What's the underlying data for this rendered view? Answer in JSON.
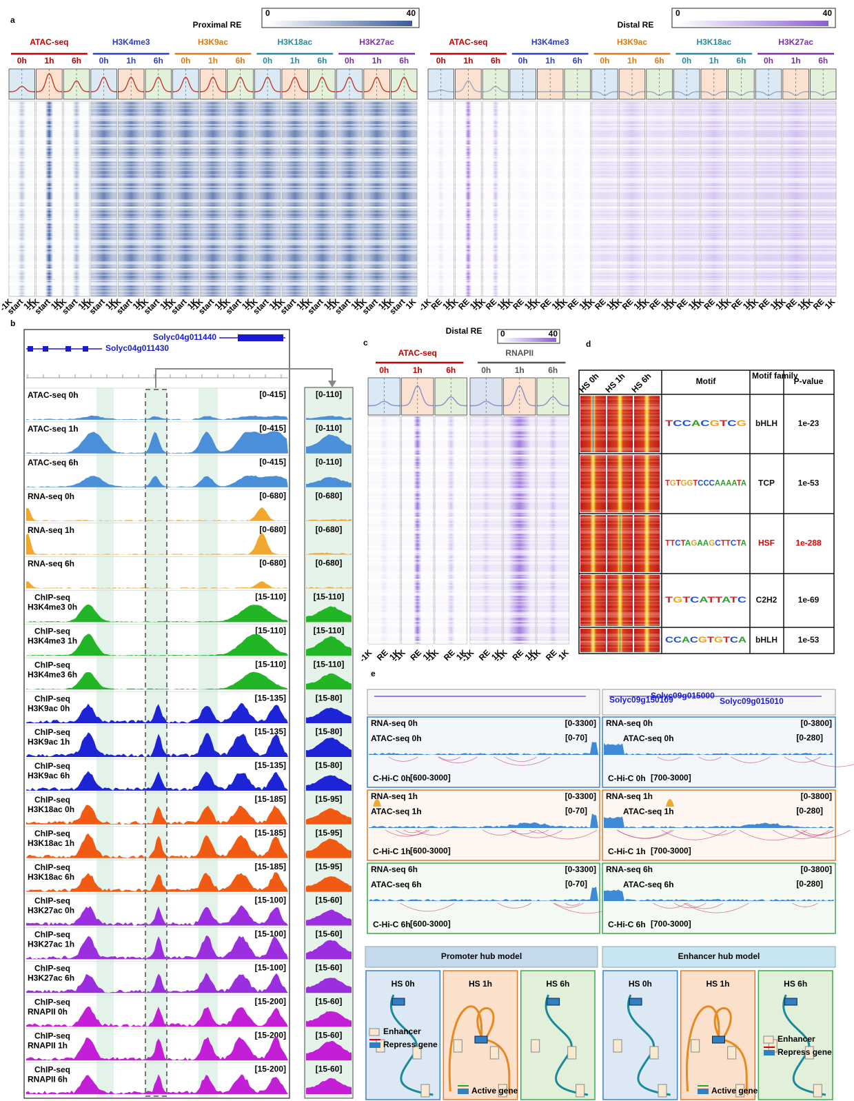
{
  "panel_a": {
    "label": "a",
    "proximal": {
      "title": "Proximal RE",
      "scale": [
        0,
        40
      ]
    },
    "distal": {
      "title": "Distal RE",
      "scale": [
        0,
        40
      ]
    },
    "marks": [
      {
        "name": "ATAC-seq",
        "color": "#c00000"
      },
      {
        "name": "H3K4me3",
        "color": "#2e3bd0"
      },
      {
        "name": "H3K9ac",
        "color": "#e07a10"
      },
      {
        "name": "H3K18ac",
        "color": "#2a8a9a"
      },
      {
        "name": "H3K27ac",
        "color": "#7b2fa8"
      }
    ],
    "times": [
      "0h",
      "1h",
      "6h"
    ],
    "proximal_axis": [
      "-1K",
      "start",
      "1K"
    ],
    "distal_axis": [
      "-1K",
      "RE",
      "1K"
    ]
  },
  "panel_b": {
    "label": "b",
    "genes": [
      "Solyc04g011440",
      "Solyc04g011430"
    ],
    "tracks": [
      {
        "name": [
          "ATAC-seq 0h"
        ],
        "range": "[0-415]",
        "zoom_range": "[0-110]",
        "color": "#4a8fd8"
      },
      {
        "name": [
          "ATAC-seq 1h"
        ],
        "range": "[0-415]",
        "zoom_range": "[0-110]",
        "color": "#4a8fd8"
      },
      {
        "name": [
          "ATAC-seq 6h"
        ],
        "range": "[0-415]",
        "zoom_range": "[0-110]",
        "color": "#4a8fd8"
      },
      {
        "name": [
          "RNA-seq 0h"
        ],
        "range": "[0-680]",
        "zoom_range": "[0-680]",
        "color": "#f0a830"
      },
      {
        "name": [
          "RNA-seq 1h"
        ],
        "range": "[0-680]",
        "zoom_range": "[0-680]",
        "color": "#f0a830"
      },
      {
        "name": [
          "RNA-seq 6h"
        ],
        "range": "[0-680]",
        "zoom_range": "[0-680]",
        "color": "#f0a830"
      },
      {
        "name": [
          "ChIP-seq",
          "H3K4me3 0h"
        ],
        "range": "[15-110]",
        "zoom_range": "[15-110]",
        "color": "#22b526"
      },
      {
        "name": [
          "ChIP-seq",
          "H3K4me3 1h"
        ],
        "range": "[15-110]",
        "zoom_range": "[15-110]",
        "color": "#22b526"
      },
      {
        "name": [
          "ChIP-seq",
          "H3K4me3 6h"
        ],
        "range": "[15-110]",
        "zoom_range": "[15-110]",
        "color": "#22b526"
      },
      {
        "name": [
          "ChIP-seq",
          "H3K9ac 0h"
        ],
        "range": "[15-135]",
        "zoom_range": "[15-80]",
        "color": "#1d24d6"
      },
      {
        "name": [
          "ChIP-seq",
          "H3K9ac 1h"
        ],
        "range": "[15-135]",
        "zoom_range": "[15-80]",
        "color": "#1d24d6"
      },
      {
        "name": [
          "ChIP-seq",
          "H3K9ac 6h"
        ],
        "range": "[15-135]",
        "zoom_range": "[15-80]",
        "color": "#1d24d6"
      },
      {
        "name": [
          "ChIP-seq",
          "H3K18ac 0h"
        ],
        "range": "[15-185]",
        "zoom_range": "[15-95]",
        "color": "#f05a12"
      },
      {
        "name": [
          "ChIP-seq",
          "H3K18ac 1h"
        ],
        "range": "[15-185]",
        "zoom_range": "[15-95]",
        "color": "#f05a12"
      },
      {
        "name": [
          "ChIP-seq",
          "H3K18ac 6h"
        ],
        "range": "[15-185]",
        "zoom_range": "[15-95]",
        "color": "#f05a12"
      },
      {
        "name": [
          "ChIP-seq",
          "H3K27ac 0h"
        ],
        "range": "[15-100]",
        "zoom_range": "[15-60]",
        "color": "#9b2fe0"
      },
      {
        "name": [
          "ChIP-seq",
          "H3K27ac 1h"
        ],
        "range": "[15-100]",
        "zoom_range": "[15-60]",
        "color": "#9b2fe0"
      },
      {
        "name": [
          "ChIP-seq",
          "H3K27ac 6h"
        ],
        "range": "[15-100]",
        "zoom_range": "[15-60]",
        "color": "#9b2fe0"
      },
      {
        "name": [
          "ChIP-seq",
          "RNAPII 0h"
        ],
        "range": "[15-200]",
        "zoom_range": "[15-60]",
        "color": "#c21fd6"
      },
      {
        "name": [
          "ChIP-seq",
          "RNAPII 1h"
        ],
        "range": "[15-200]",
        "zoom_range": "[15-60]",
        "color": "#c21fd6"
      },
      {
        "name": [
          "ChIP-seq",
          "RNAPII 6h"
        ],
        "range": "[15-200]",
        "zoom_range": "[15-60]",
        "color": "#c21fd6"
      }
    ]
  },
  "panel_c": {
    "label": "c",
    "title": "Distal RE",
    "scale": [
      0,
      40
    ],
    "marks": [
      {
        "name": "ATAC-seq",
        "color": "#c00000"
      },
      {
        "name": "RNAPII",
        "color": "#555555"
      }
    ],
    "times": [
      "0h",
      "1h",
      "6h"
    ],
    "axis": [
      "-1K",
      "RE",
      "1K"
    ]
  },
  "panel_d": {
    "label": "d",
    "header": [
      "HS 0h",
      "HS 1h",
      "HS 6h",
      "Motif",
      "Motif family",
      "P-value"
    ],
    "rows": [
      {
        "motif": "TCCACGTCG",
        "family": "bHLH",
        "p": "1e-23"
      },
      {
        "motif": "TGTGGTCCCAAAATA",
        "family": "TCP",
        "p": "1e-53"
      },
      {
        "motif": "TTCTAGAAGCTTCTA",
        "family": "HSF",
        "p": "1e-288"
      },
      {
        "motif": "TGTCATTATC",
        "family": "C2H2",
        "p": "1e-69"
      },
      {
        "motif": "CCACGTGTCA",
        "family": "bHLH",
        "p": "1e-53"
      }
    ]
  },
  "panel_e": {
    "label": "e",
    "loci": [
      {
        "genes": [],
        "rna_range": "[0-3300]",
        "atac_range": "[0-70]",
        "hic_range": "[600-3000]"
      },
      {
        "genes": [
          "Solyc09g015000",
          "Solyc09g150109",
          "Solyc09g015010"
        ],
        "rna_range": "[0-3800]",
        "atac_range": "[0-280]",
        "hic_range": "[700-3000]"
      }
    ],
    "rows": [
      {
        "rna": "RNA-seq 0h",
        "atac": "ATAC-seq 0h",
        "hic": "C-Hi-C 0h"
      },
      {
        "rna": "RNA-seq 1h",
        "atac": "ATAC-seq 1h",
        "hic": "C-Hi-C 1h"
      },
      {
        "rna": "RNA-seq 6h",
        "atac": "ATAC-seq 6h",
        "hic": "C-Hi-C 6h"
      }
    ],
    "models": [
      {
        "title": "Promoter hub model",
        "boxes": [
          "HS 0h",
          "HS 1h",
          "HS 6h"
        ]
      },
      {
        "title": "Enhancer hub model",
        "boxes": [
          "HS 0h",
          "HS 1h",
          "HS 6h"
        ]
      }
    ],
    "legend": {
      "enhancer": "Enhancer",
      "repress": "Repress gene",
      "active": "Active gene"
    }
  }
}
